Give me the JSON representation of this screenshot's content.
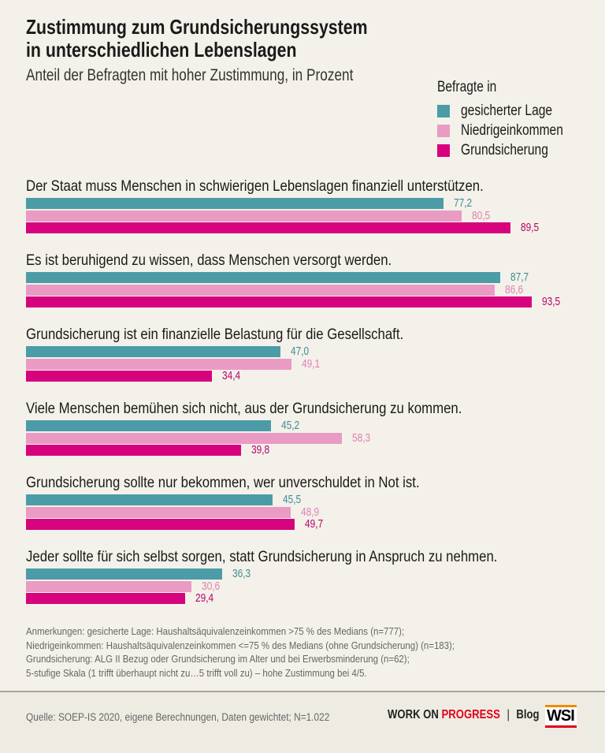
{
  "chart_data": {
    "type": "bar",
    "orientation": "horizontal",
    "title": "Zustimmung zum Grundsicherungssystem in unterschiedlichen Lebenslagen",
    "title_lines": [
      "Zustimmung zum Grundsicherungssystem",
      "in unterschiedlichen Lebenslagen"
    ],
    "subtitle": "Anteil der Befragten mit hoher Zustimmung, in Prozent",
    "legend_title": "Befragte in",
    "legend_placement": "top-right",
    "grid": false,
    "xlim": [
      0,
      100
    ],
    "categories": [
      "Der Staat muss Menschen in schwierigen Lebenslagen finanziell unterstützen.",
      "Es ist beruhigend zu wissen, dass Menschen versorgt werden.",
      "Grundsicherung ist ein finanzielle Belastung für die Gesellschaft.",
      "Viele Menschen bemühen sich nicht, aus der Grundsicherung zu kommen.",
      "Grundsicherung sollte nur bekommen, wer unverschuldet in Not ist.",
      "Jeder sollte für sich selbst sorgen, statt Grundsicherung in Anspruch zu nehmen."
    ],
    "series": [
      {
        "name": "gesicherter Lage",
        "color": "#4b9ca7",
        "label_color": "#3f8d98",
        "values": [
          77.2,
          87.7,
          47.0,
          45.2,
          45.5,
          36.3
        ],
        "labels": [
          "77,2",
          "87,7",
          "47,0",
          "45,2",
          "45,5",
          "36,3"
        ]
      },
      {
        "name": "Niedrigeinkommen",
        "color": "#e99bc4",
        "label_color": "#e27fb4",
        "values": [
          80.5,
          86.6,
          49.1,
          58.3,
          48.9,
          30.6
        ],
        "labels": [
          "80,5",
          "86,6",
          "49,1",
          "58,3",
          "48,9",
          "30,6"
        ]
      },
      {
        "name": "Grundsicherung",
        "color": "#d7037e",
        "label_color": "#b8006a",
        "values": [
          89.5,
          93.5,
          34.4,
          39.8,
          49.7,
          29.4
        ],
        "labels": [
          "89,5",
          "93,5",
          "34,4",
          "39,8",
          "49,7",
          "29,4"
        ]
      }
    ]
  },
  "notes": [
    "Anmerkungen: gesicherte Lage: Haushaltsäquivalenzeinkommen >75 % des Medians (n=777);",
    "Niedrigeinkommen: Haushaltsäquivalenzeinkommen <=75 % des Medians (ohne Grundsicherung) (n=183);",
    "Grundsicherung: ALG II Bezug oder Grundsicherung im Alter und bei Erwerbsminderung (n=62);",
    "5-stufige Skala (1 trifft überhaupt nicht zu…5 trifft voll zu) – hohe Zustimmung bei 4/5."
  ],
  "footer": {
    "source": "Quelle: SOEP-IS 2020, eigene Berechnungen, Daten gewichtet; N=1.022",
    "brand_a": "WORK ON ",
    "brand_b": "PROGRESS",
    "separator": "|",
    "blog": "Blog",
    "logo": "WSI"
  }
}
